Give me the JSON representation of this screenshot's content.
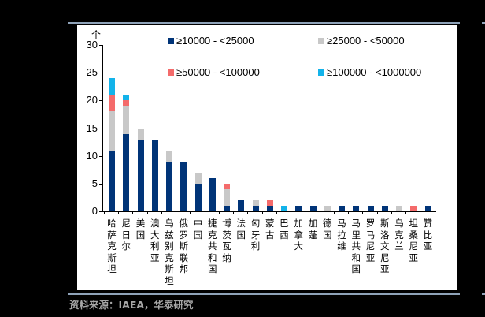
{
  "chart_data": {
    "type": "bar",
    "stacked": true,
    "title": "",
    "xlabel": "",
    "ylabel": "个",
    "ylim": [
      0,
      30
    ],
    "yticks": [
      0,
      5,
      10,
      15,
      20,
      25,
      30
    ],
    "grid": false,
    "legend_position": "top-right, inside plot, 2 columns",
    "categories": [
      "哈萨克斯坦",
      "尼日尔",
      "美国",
      "澳大利亚",
      "乌兹别克斯坦",
      "俄罗斯联邦",
      "中国",
      "捷克共和国",
      "博茨瓦纳",
      "法国",
      "匈牙利",
      "蒙古",
      "巴西",
      "加拿大",
      "加蓬",
      "德国",
      "马拉维",
      "马里共和国",
      "罗马尼亚",
      "斯洛文尼亚",
      "乌克兰",
      "坦桑尼亚",
      "赞比亚"
    ],
    "series": [
      {
        "name": "≥10000 - <25000",
        "color": "#003478",
        "values": [
          11,
          14,
          13,
          13,
          9,
          9,
          5,
          6,
          1,
          2,
          1,
          1,
          0,
          1,
          1,
          0,
          1,
          1,
          1,
          1,
          0,
          0,
          1
        ]
      },
      {
        "name": "≥25000 - <50000",
        "color": "#c8c8c8",
        "values": [
          7,
          5,
          2,
          0,
          2,
          0,
          2,
          0,
          3,
          0,
          1,
          0,
          0,
          0,
          0,
          1,
          0,
          0,
          0,
          0,
          1,
          0,
          0
        ]
      },
      {
        "name": "≥50000 - <100000",
        "color": "#f46b6b",
        "values": [
          3,
          1,
          0,
          0,
          0,
          0,
          0,
          0,
          1,
          0,
          0,
          1,
          0,
          0,
          0,
          0,
          0,
          0,
          0,
          0,
          0,
          1,
          0
        ]
      },
      {
        "name": "≥100000 - <1000000",
        "color": "#13b3ea",
        "values": [
          3,
          1,
          0,
          0,
          0,
          0,
          0,
          0,
          0,
          0,
          0,
          0,
          1,
          0,
          0,
          0,
          0,
          0,
          0,
          0,
          0,
          0,
          0
        ]
      }
    ]
  },
  "chart": {
    "unit_label": "个",
    "yticks": [
      "0",
      "5",
      "10",
      "15",
      "20",
      "25",
      "30"
    ],
    "legend": [
      {
        "label": "≥10000 - <25000",
        "color": "#003478"
      },
      {
        "label": "≥25000 - <50000",
        "color": "#c8c8c8"
      },
      {
        "label": "≥50000 - <100000",
        "color": "#f46b6b"
      },
      {
        "label": "≥100000 - <1000000",
        "color": "#13b3ea"
      }
    ]
  },
  "source": "资料来源：IAEA，华泰研究"
}
